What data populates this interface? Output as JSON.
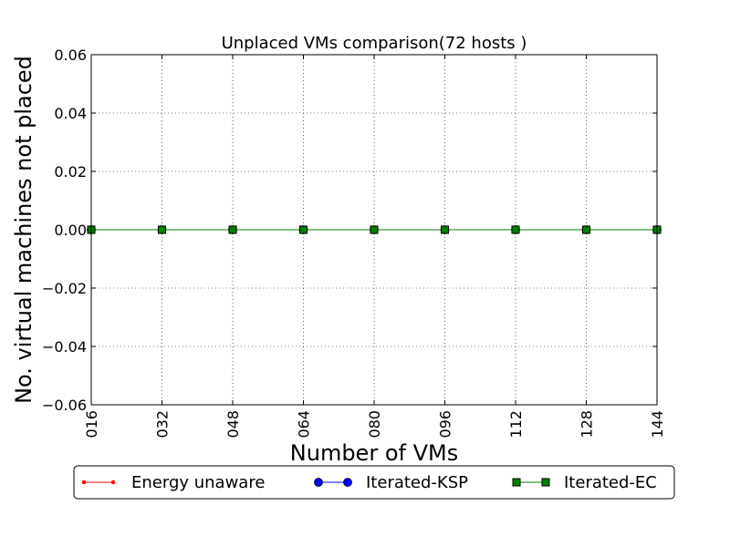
{
  "chart_data": {
    "type": "line",
    "title": "Unplaced VMs comparison(72 hosts )",
    "xlabel": "Number of VMs",
    "ylabel": "No. virtual machines not placed",
    "x": [
      16,
      32,
      48,
      64,
      80,
      96,
      112,
      128,
      144
    ],
    "x_tick_labels": [
      "016",
      "032",
      "048",
      "064",
      "080",
      "096",
      "112",
      "128",
      "144"
    ],
    "y_ticks": [
      0.06,
      0.04,
      0.02,
      0.0,
      -0.02,
      -0.04,
      -0.06
    ],
    "y_tick_labels": [
      "0.06",
      "0.04",
      "0.02",
      "0.00",
      "−0.02",
      "−0.04",
      "−0.06"
    ],
    "xlim": [
      16,
      144
    ],
    "ylim": [
      -0.06,
      0.06
    ],
    "grid": true,
    "legend_position": "bottom-center",
    "series": [
      {
        "name": "Energy unaware",
        "values": [
          0,
          0,
          0,
          0,
          0,
          0,
          0,
          0,
          0
        ],
        "color": "#ff0000",
        "marker": "dot"
      },
      {
        "name": "Iterated-KSP",
        "values": [
          0,
          0,
          0,
          0,
          0,
          0,
          0,
          0,
          0
        ],
        "color": "#0000ff",
        "marker": "circle"
      },
      {
        "name": "Iterated-EC",
        "values": [
          0,
          0,
          0,
          0,
          0,
          0,
          0,
          0,
          0
        ],
        "color": "#008000",
        "marker": "square"
      }
    ]
  }
}
